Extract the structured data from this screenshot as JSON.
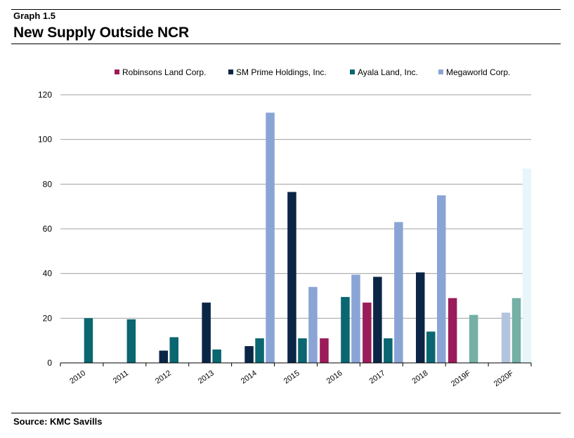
{
  "header": {
    "graph_label": "Graph 1.5",
    "title": "New Supply Outside NCR"
  },
  "footer": {
    "source": "Source: KMC Savills"
  },
  "chart_data": {
    "type": "bar",
    "title": "New Supply Outside NCR",
    "xlabel": "",
    "ylabel": "",
    "ylim": [
      0,
      120
    ],
    "yticks": [
      0,
      20,
      40,
      60,
      80,
      100,
      120
    ],
    "grid": true,
    "legend_position": "top",
    "categories": [
      "2010",
      "2011",
      "2012",
      "2013",
      "2014",
      "2015",
      "2016",
      "2017",
      "2018",
      "2019F",
      "2020F"
    ],
    "series": [
      {
        "name": "Robinsons Land Corp.",
        "color": "#9b1c5a",
        "forecast_color": "#9b1c5a",
        "values": [
          null,
          null,
          null,
          null,
          null,
          null,
          11,
          27,
          null,
          29,
          null
        ]
      },
      {
        "name": "SM Prime Holdings, Inc.",
        "color": "#0b2546",
        "forecast_color": "#b3c4de",
        "values": [
          null,
          null,
          5.5,
          27,
          7.5,
          76.5,
          null,
          38.5,
          40.5,
          null,
          22.5
        ]
      },
      {
        "name": "Ayala Land, Inc.",
        "color": "#0a6670",
        "forecast_color": "#74b0a6",
        "values": [
          20,
          19.5,
          11.5,
          6,
          11,
          11,
          29.5,
          11,
          14,
          21.5,
          29
        ]
      },
      {
        "name": "Megaworld Corp.",
        "color": "#8aa4d6",
        "forecast_color": "#e8f5fb",
        "values": [
          null,
          null,
          null,
          null,
          112,
          34,
          39.5,
          63,
          75,
          null,
          87
        ]
      }
    ],
    "forecast_categories": [
      "2019F",
      "2020F"
    ]
  }
}
